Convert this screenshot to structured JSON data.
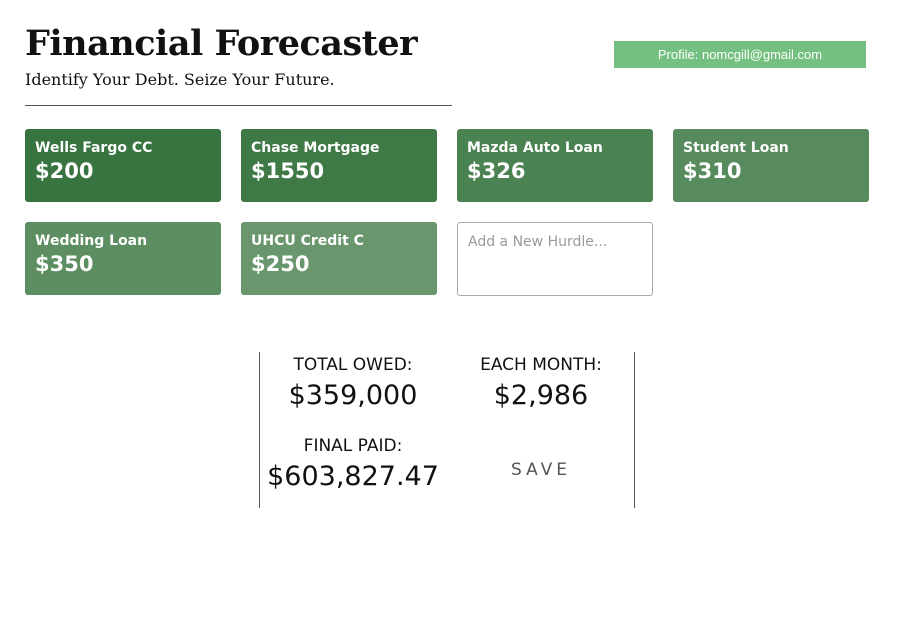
{
  "header": {
    "title": "Financial Forecaster",
    "subtitle": "Identify Your Debt. Seize Your Future.",
    "profile_label": "Profile: nomcgill@gmail.com"
  },
  "colors": {
    "profile_button": "#74c080"
  },
  "hurdles": [
    {
      "name": "Wells Fargo CC",
      "amount": "$200",
      "color": "#37743f"
    },
    {
      "name": "Chase Mortgage",
      "amount": "$1550",
      "color": "#3f7a46"
    },
    {
      "name": "Mazda Auto Loan",
      "amount": "$326",
      "color": "#4b8251"
    },
    {
      "name": "Student Loan",
      "amount": "$310",
      "color": "#578a5c"
    },
    {
      "name": "Wedding Loan",
      "amount": "$350",
      "color": "#5d8e62"
    },
    {
      "name": "UHCU Credit C",
      "amount": "$250",
      "color": "#6a966d"
    }
  ],
  "new_hurdle": {
    "placeholder": "Add a New Hurdle..."
  },
  "summary": {
    "total_owed_label": "TOTAL OWED:",
    "total_owed_value": "$359,000",
    "each_month_label": "EACH MONTH:",
    "each_month_value": "$2,986",
    "final_paid_label": "FINAL PAID:",
    "final_paid_value": "$603,827.47",
    "save_label": "SAVE"
  }
}
